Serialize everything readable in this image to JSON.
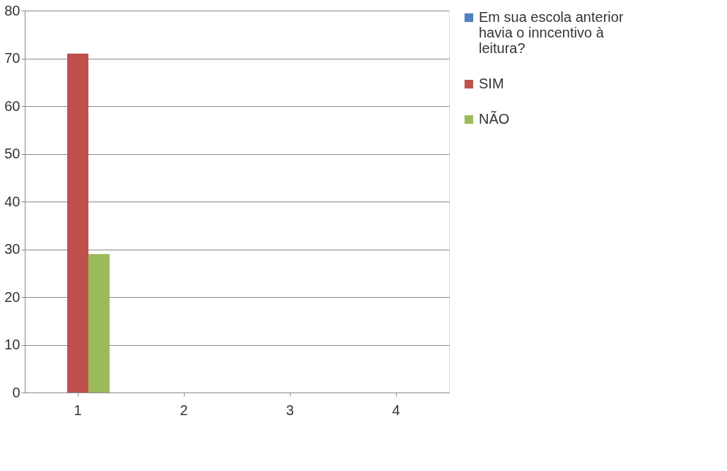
{
  "chart_data": {
    "type": "bar",
    "categories": [
      "1",
      "2",
      "3",
      "4"
    ],
    "series": [
      {
        "name": "Em sua escola anterior havia o inncentivo à leitura?",
        "color": "#4f81bd",
        "values": [
          null,
          null,
          null,
          null
        ]
      },
      {
        "name": "SIM",
        "color": "#c0504d",
        "values": [
          71,
          null,
          null,
          null
        ]
      },
      {
        "name": "NÃO",
        "color": "#9bbb59",
        "values": [
          29,
          null,
          null,
          null
        ]
      }
    ],
    "ylim": [
      0,
      80
    ],
    "yticks": [
      0,
      10,
      20,
      30,
      40,
      50,
      60,
      70,
      80
    ],
    "grid": "y",
    "legend": "right"
  }
}
